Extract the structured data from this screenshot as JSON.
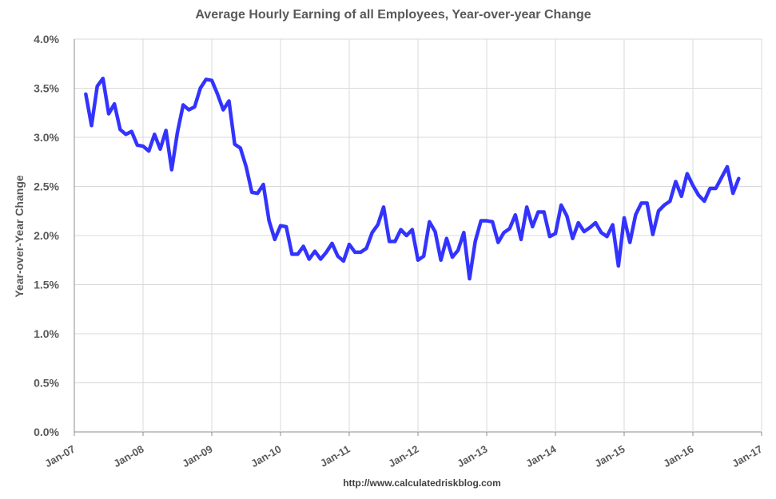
{
  "chart_data": {
    "type": "line",
    "title": "Average Hourly Earning of all Employees, Year-over-year Change",
    "ylabel": "Year-over-Year Change",
    "xlabel": "",
    "source": "http://www.calculatedriskblog.com",
    "ylim": [
      0,
      4
    ],
    "y_ticks": [
      "0.0%",
      "0.5%",
      "1.0%",
      "1.5%",
      "2.0%",
      "2.5%",
      "3.0%",
      "3.5%",
      "4.0%"
    ],
    "x_ticks": [
      "Jan-07",
      "Jan-08",
      "Jan-09",
      "Jan-10",
      "Jan-11",
      "Jan-12",
      "Jan-13",
      "Jan-14",
      "Jan-15",
      "Jan-16",
      "Jan-17"
    ],
    "grid": true,
    "line_color": "#3333ff",
    "x_start": "2007-03",
    "series": [
      {
        "values": [
          3.44,
          3.12,
          3.52,
          3.6,
          3.24,
          3.34,
          3.08,
          3.03,
          3.06,
          2.92,
          2.91,
          2.86,
          3.03,
          2.88,
          3.07,
          2.67,
          3.05,
          3.33,
          3.28,
          3.31,
          3.5,
          3.59,
          3.58,
          3.44,
          3.28,
          3.37,
          2.93,
          2.89,
          2.7,
          2.44,
          2.43,
          2.52,
          2.15,
          1.96,
          2.1,
          2.09,
          1.81,
          1.81,
          1.89,
          1.76,
          1.84,
          1.76,
          1.83,
          1.92,
          1.79,
          1.74,
          1.91,
          1.83,
          1.83,
          1.87,
          2.03,
          2.11,
          2.29,
          1.94,
          1.94,
          2.06,
          2.0,
          2.06,
          1.75,
          1.79,
          2.14,
          2.04,
          1.75,
          1.97,
          1.78,
          1.85,
          2.03,
          1.56,
          1.94,
          2.15,
          2.15,
          2.14,
          1.93,
          2.03,
          2.07,
          2.21,
          1.96,
          2.29,
          2.09,
          2.24,
          2.24,
          1.99,
          2.02,
          2.31,
          2.2,
          1.97,
          2.13,
          2.04,
          2.08,
          2.13,
          2.03,
          1.99,
          2.11,
          1.69,
          2.18,
          1.93,
          2.21,
          2.33,
          2.33,
          2.01,
          2.25,
          2.31,
          2.35,
          2.55,
          2.4,
          2.63,
          2.51,
          2.41,
          2.35,
          2.48,
          2.48,
          2.59,
          2.7,
          2.43,
          2.58
        ]
      }
    ]
  }
}
